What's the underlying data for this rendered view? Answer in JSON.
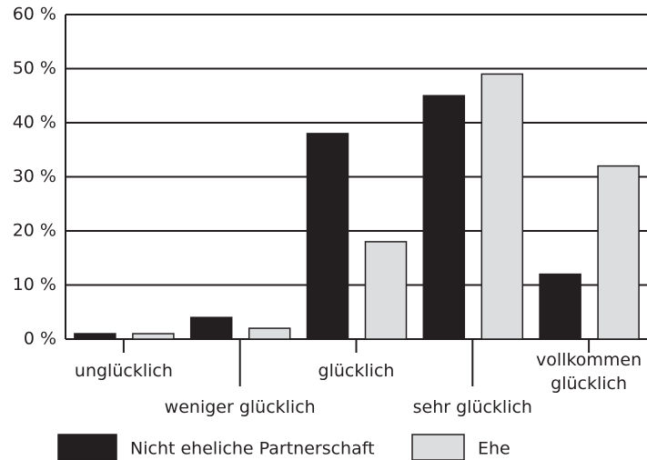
{
  "chart_data": {
    "type": "bar",
    "categories": [
      "unglücklich",
      "weniger glücklich",
      "glücklich",
      "sehr glücklich",
      "vollkommen glücklich"
    ],
    "series": [
      {
        "name": "Nicht eheliche Partnerschaft",
        "color": "#231f20",
        "values": [
          1,
          4,
          38,
          45,
          12
        ]
      },
      {
        "name": "Ehe",
        "color": "#dcddde",
        "values": [
          1,
          2,
          18,
          49,
          32
        ]
      }
    ],
    "ylim": [
      0,
      60
    ],
    "yticks": [
      {
        "value": 0,
        "label": "0 %"
      },
      {
        "value": 10,
        "label": "10 %"
      },
      {
        "value": 20,
        "label": "20 %"
      },
      {
        "value": 30,
        "label": "30 %"
      },
      {
        "value": 40,
        "label": "40 %"
      },
      {
        "value": 50,
        "label": "50 %"
      },
      {
        "value": 60,
        "label": "60 %"
      }
    ],
    "grid": true,
    "legend": "bottom"
  }
}
